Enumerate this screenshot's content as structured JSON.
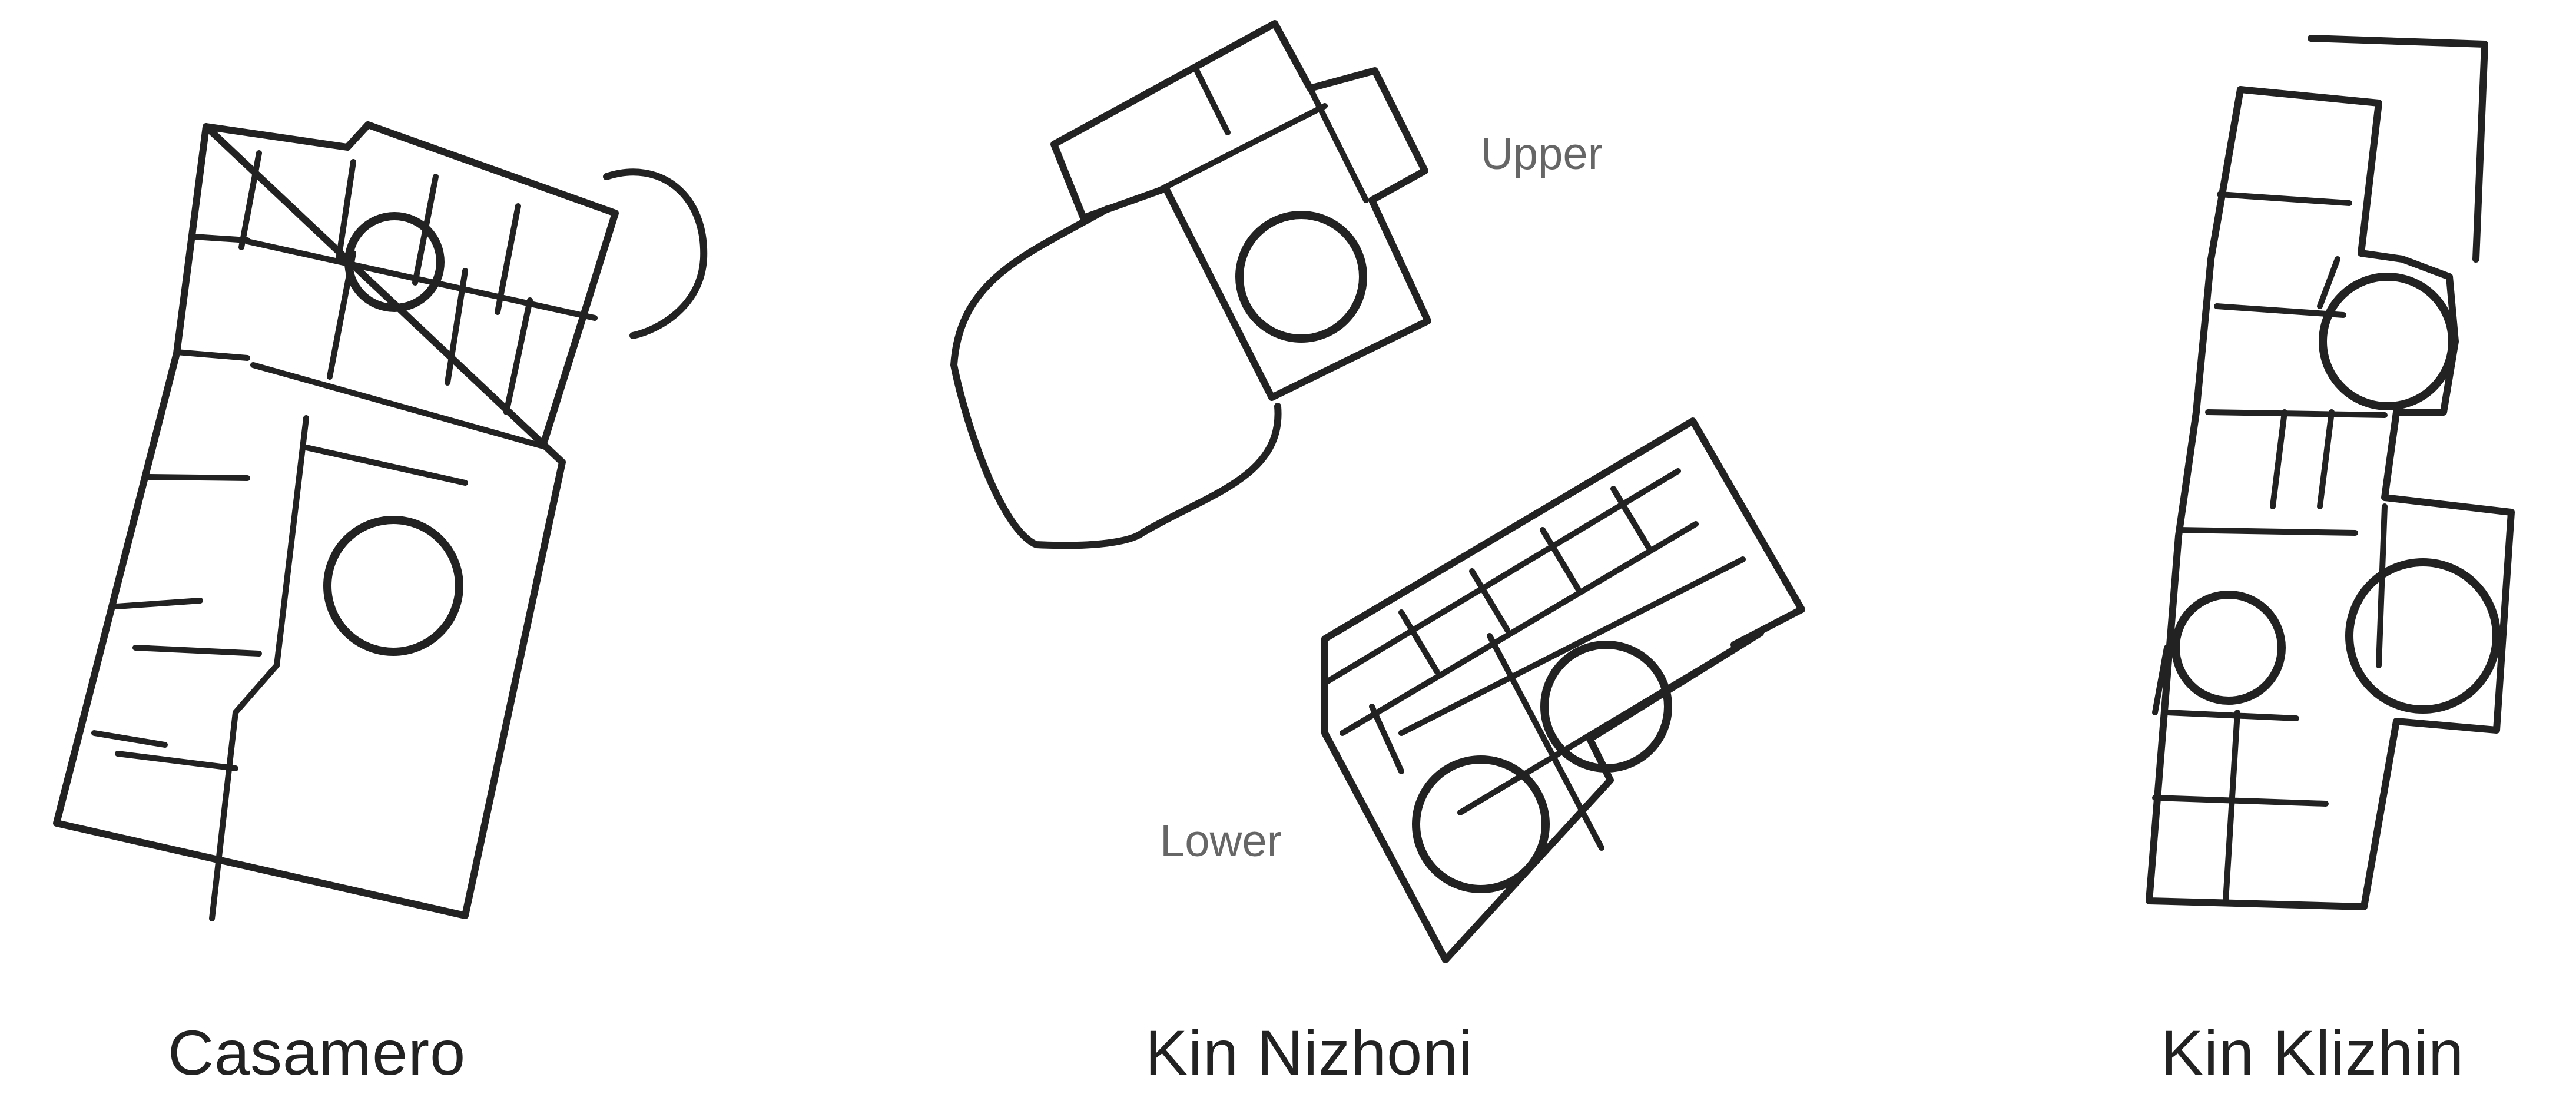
{
  "sites": [
    {
      "id": "casamero",
      "name": "Casamero"
    },
    {
      "id": "kin-nizhoni",
      "name": "Kin Nizhoni",
      "units": [
        {
          "label": "Upper"
        },
        {
          "label": "Lower"
        }
      ]
    },
    {
      "id": "kin-klizhin",
      "name": "Kin Klizhin"
    }
  ],
  "colors": {
    "ink": "#222222",
    "sub_label": "#666666",
    "background": "#ffffff"
  }
}
